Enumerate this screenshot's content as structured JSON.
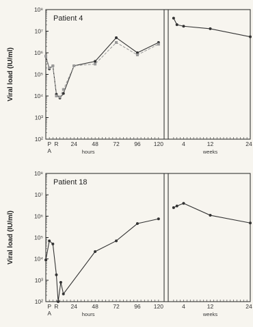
{
  "chart_data": [
    {
      "type": "line",
      "title": "Patient 4",
      "ylabel": "Viral load (IU/ml)",
      "y_scale": "log",
      "ylim": [
        100,
        100000000
      ],
      "ytick_values": [
        100,
        1000,
        10000,
        100000,
        1000000,
        10000000,
        100000000
      ],
      "ytick_labels": [
        "10²",
        "10³",
        "10⁴",
        "10⁵",
        "10⁶",
        "10⁷",
        "10⁸"
      ],
      "hours_axis": {
        "xlabel": "hours",
        "xlim": [
          -8,
          124
        ],
        "ticks": [
          {
            "x": -4,
            "label": "P"
          },
          {
            "x": 4,
            "label": "R"
          },
          {
            "x": 24,
            "label": "24"
          },
          {
            "x": 48,
            "label": "48"
          },
          {
            "x": 72,
            "label": "72"
          },
          {
            "x": 96,
            "label": "96"
          },
          {
            "x": 120,
            "label": "120"
          }
        ],
        "sub_label": {
          "x": -4,
          "label": "A"
        }
      },
      "weeks_axis": {
        "xlabel": "weeks",
        "xlim": [
          0,
          24
        ],
        "ticks": [
          {
            "x": 4,
            "label": "4"
          },
          {
            "x": 12,
            "label": "12"
          },
          {
            "x": 24,
            "label": "24"
          }
        ]
      },
      "series": [
        {
          "style": "solid",
          "color": "#333333",
          "hours": [
            {
              "x": -8,
              "y": 700000
            },
            {
              "x": -4,
              "y": 180000
            },
            {
              "x": 0,
              "y": 250000
            },
            {
              "x": 4,
              "y": 12000
            },
            {
              "x": 8,
              "y": 8000
            },
            {
              "x": 12,
              "y": 13000
            },
            {
              "x": 24,
              "y": 250000
            },
            {
              "x": 48,
              "y": 400000
            },
            {
              "x": 72,
              "y": 5000000
            },
            {
              "x": 96,
              "y": 1000000
            },
            {
              "x": 120,
              "y": 3000000
            }
          ],
          "weeks": [
            {
              "x": 1,
              "y": 40000000
            },
            {
              "x": 2,
              "y": 20000000
            },
            {
              "x": 4,
              "y": 17000000
            },
            {
              "x": 12,
              "y": 13000000
            },
            {
              "x": 24,
              "y": 5500000
            }
          ]
        },
        {
          "style": "dashed",
          "color": "#999999",
          "hours": [
            {
              "x": -8,
              "y": 700000
            },
            {
              "x": -4,
              "y": 200000
            },
            {
              "x": 0,
              "y": 250000
            },
            {
              "x": 4,
              "y": 10000
            },
            {
              "x": 8,
              "y": 9000
            },
            {
              "x": 12,
              "y": 20000
            },
            {
              "x": 24,
              "y": 250000
            },
            {
              "x": 48,
              "y": 300000
            },
            {
              "x": 72,
              "y": 3000000
            },
            {
              "x": 96,
              "y": 800000
            },
            {
              "x": 120,
              "y": 2500000
            }
          ],
          "weeks": []
        }
      ]
    },
    {
      "type": "line",
      "title": "Patient 18",
      "ylabel": "Viral load (IU/ml)",
      "y_scale": "log",
      "ylim": [
        100,
        100000000
      ],
      "ytick_values": [
        100,
        1000,
        10000,
        100000,
        1000000,
        10000000,
        100000000
      ],
      "ytick_labels": [
        "10²",
        "10³",
        "10⁴",
        "10⁵",
        "10⁶",
        "10⁷",
        "10⁸"
      ],
      "hours_axis": {
        "xlabel": "hours",
        "xlim": [
          -8,
          124
        ],
        "ticks": [
          {
            "x": -4,
            "label": "P"
          },
          {
            "x": 4,
            "label": "R"
          },
          {
            "x": 24,
            "label": "24"
          },
          {
            "x": 48,
            "label": "48"
          },
          {
            "x": 72,
            "label": "72"
          },
          {
            "x": 96,
            "label": "96"
          },
          {
            "x": 120,
            "label": "120"
          }
        ],
        "sub_label": {
          "x": -4,
          "label": "A"
        }
      },
      "weeks_axis": {
        "xlabel": "weeks",
        "xlim": [
          0,
          24
        ],
        "ticks": [
          {
            "x": 4,
            "label": "4"
          },
          {
            "x": 12,
            "label": "12"
          },
          {
            "x": 24,
            "label": "24"
          }
        ]
      },
      "series": [
        {
          "style": "solid",
          "color": "#333333",
          "hours": [
            {
              "x": -8,
              "y": 9000
            },
            {
              "x": -4,
              "y": 70000
            },
            {
              "x": 0,
              "y": 50000
            },
            {
              "x": 4,
              "y": 1800
            },
            {
              "x": 6,
              "y": 100
            },
            {
              "x": 9,
              "y": 800
            },
            {
              "x": 12,
              "y": 230
            },
            {
              "x": 48,
              "y": 22000
            },
            {
              "x": 72,
              "y": 70000
            },
            {
              "x": 96,
              "y": 450000
            },
            {
              "x": 120,
              "y": 750000
            }
          ],
          "weeks": [
            {
              "x": 1,
              "y": 2500000
            },
            {
              "x": 2,
              "y": 3000000
            },
            {
              "x": 4,
              "y": 4000000
            },
            {
              "x": 12,
              "y": 1100000
            },
            {
              "x": 24,
              "y": 480000
            }
          ]
        }
      ]
    }
  ]
}
